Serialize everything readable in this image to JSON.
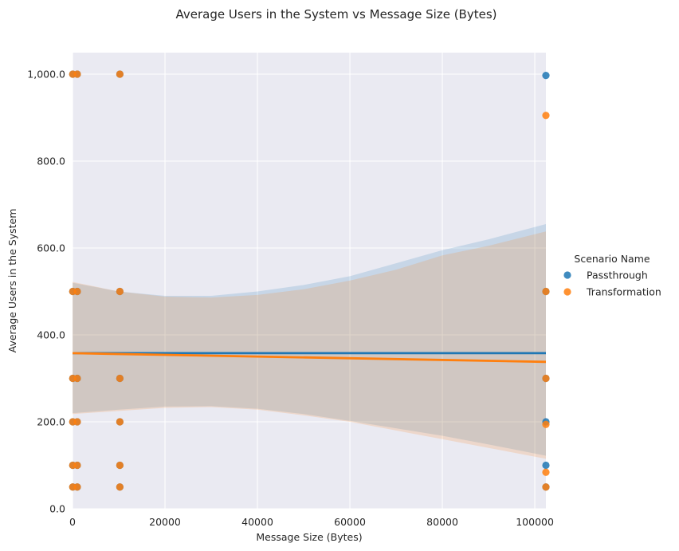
{
  "chart_data": {
    "type": "scatter",
    "title": "Average Users in the System vs Message Size (Bytes)",
    "xlabel": "Message Size (Bytes)",
    "ylabel": "Average Users in the System",
    "xlim": [
      0,
      102400
    ],
    "ylim": [
      0,
      1000
    ],
    "x_ticks": [
      0,
      20000,
      40000,
      60000,
      80000,
      100000
    ],
    "x_tick_labels": [
      "0",
      "20000",
      "40000",
      "60000",
      "80000",
      "100000"
    ],
    "y_ticks": [
      0,
      200,
      400,
      600,
      800,
      1000
    ],
    "y_tick_labels": [
      "0.0",
      "200.0",
      "400.0",
      "600.0",
      "800.0",
      "1,000.0"
    ],
    "grid": true,
    "legend": {
      "title": "Scenario Name",
      "placement": "right"
    },
    "series": [
      {
        "name": "Passthrough",
        "color": "#1f77b4",
        "points": [
          [
            50,
            50
          ],
          [
            50,
            100
          ],
          [
            50,
            200
          ],
          [
            50,
            300
          ],
          [
            50,
            500
          ],
          [
            50,
            1000
          ],
          [
            1024,
            50
          ],
          [
            1024,
            100
          ],
          [
            1024,
            200
          ],
          [
            1024,
            300
          ],
          [
            1024,
            500
          ],
          [
            1024,
            1000
          ],
          [
            10240,
            50
          ],
          [
            10240,
            100
          ],
          [
            10240,
            200
          ],
          [
            10240,
            300
          ],
          [
            10240,
            500
          ],
          [
            10240,
            1000
          ],
          [
            102400,
            50
          ],
          [
            102400,
            100
          ],
          [
            102400,
            200
          ],
          [
            102400,
            300
          ],
          [
            102400,
            500
          ],
          [
            102400,
            997
          ]
        ],
        "regression": {
          "start": [
            0,
            358
          ],
          "end": [
            102400,
            358
          ]
        },
        "ci_upper": [
          [
            0,
            520
          ],
          [
            10000,
            500
          ],
          [
            20000,
            490
          ],
          [
            30000,
            490
          ],
          [
            40000,
            500
          ],
          [
            50000,
            515
          ],
          [
            60000,
            535
          ],
          [
            70000,
            565
          ],
          [
            80000,
            595
          ],
          [
            90000,
            620
          ],
          [
            102400,
            655
          ]
        ],
        "ci_lower": [
          [
            0,
            220
          ],
          [
            10000,
            228
          ],
          [
            20000,
            235
          ],
          [
            30000,
            236
          ],
          [
            40000,
            230
          ],
          [
            50000,
            218
          ],
          [
            60000,
            202
          ],
          [
            70000,
            185
          ],
          [
            80000,
            168
          ],
          [
            90000,
            148
          ],
          [
            102400,
            122
          ]
        ]
      },
      {
        "name": "Transformation",
        "color": "#ff7f0e",
        "points": [
          [
            50,
            50
          ],
          [
            50,
            100
          ],
          [
            50,
            200
          ],
          [
            50,
            300
          ],
          [
            50,
            500
          ],
          [
            50,
            1000
          ],
          [
            1024,
            50
          ],
          [
            1024,
            100
          ],
          [
            1024,
            200
          ],
          [
            1024,
            300
          ],
          [
            1024,
            500
          ],
          [
            1024,
            1000
          ],
          [
            10240,
            50
          ],
          [
            10240,
            100
          ],
          [
            10240,
            200
          ],
          [
            10240,
            300
          ],
          [
            10240,
            500
          ],
          [
            10240,
            1000
          ],
          [
            102400,
            50
          ],
          [
            102400,
            84
          ],
          [
            102400,
            194
          ],
          [
            102400,
            300
          ],
          [
            102400,
            500
          ],
          [
            102400,
            905
          ]
        ],
        "regression": {
          "start": [
            0,
            358
          ],
          "end": [
            102400,
            338
          ]
        },
        "ci_upper": [
          [
            0,
            522
          ],
          [
            10000,
            500
          ],
          [
            20000,
            488
          ],
          [
            30000,
            486
          ],
          [
            40000,
            492
          ],
          [
            50000,
            505
          ],
          [
            60000,
            525
          ],
          [
            70000,
            550
          ],
          [
            80000,
            583
          ],
          [
            90000,
            605
          ],
          [
            102400,
            638
          ]
        ],
        "ci_lower": [
          [
            0,
            218
          ],
          [
            10000,
            225
          ],
          [
            20000,
            232
          ],
          [
            30000,
            234
          ],
          [
            40000,
            228
          ],
          [
            50000,
            215
          ],
          [
            60000,
            200
          ],
          [
            70000,
            180
          ],
          [
            80000,
            160
          ],
          [
            90000,
            140
          ],
          [
            102400,
            115
          ]
        ]
      }
    ]
  }
}
